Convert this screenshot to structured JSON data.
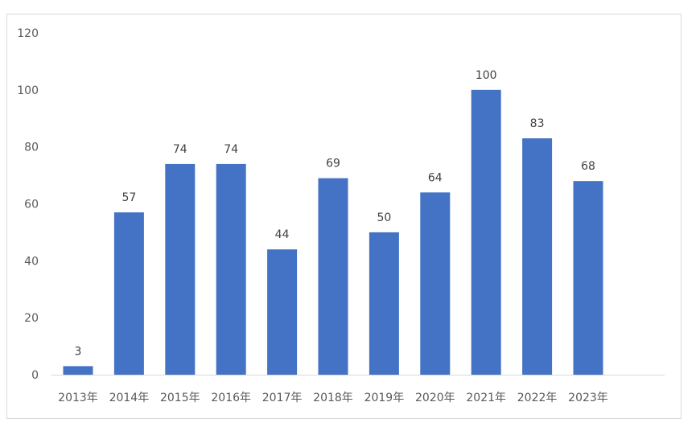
{
  "chart_data": {
    "type": "bar",
    "categories": [
      "2013年",
      "2014年",
      "2015年",
      "2016年",
      "2017年",
      "2018年",
      "2019年",
      "2020年",
      "2021年",
      "2022年",
      "2023年"
    ],
    "values": [
      3,
      57,
      74,
      74,
      44,
      69,
      50,
      64,
      100,
      83,
      68
    ],
    "ylim": [
      0,
      120
    ],
    "yticks": [
      0,
      20,
      40,
      60,
      80,
      100,
      120
    ],
    "data_labels": true,
    "grid": false,
    "legend": "none",
    "colors": {
      "bar": "#4472C4",
      "axis": "#d9d9d9",
      "frame": "#d9d9d9",
      "tick_text": "#595959",
      "label_text": "#404040"
    }
  }
}
